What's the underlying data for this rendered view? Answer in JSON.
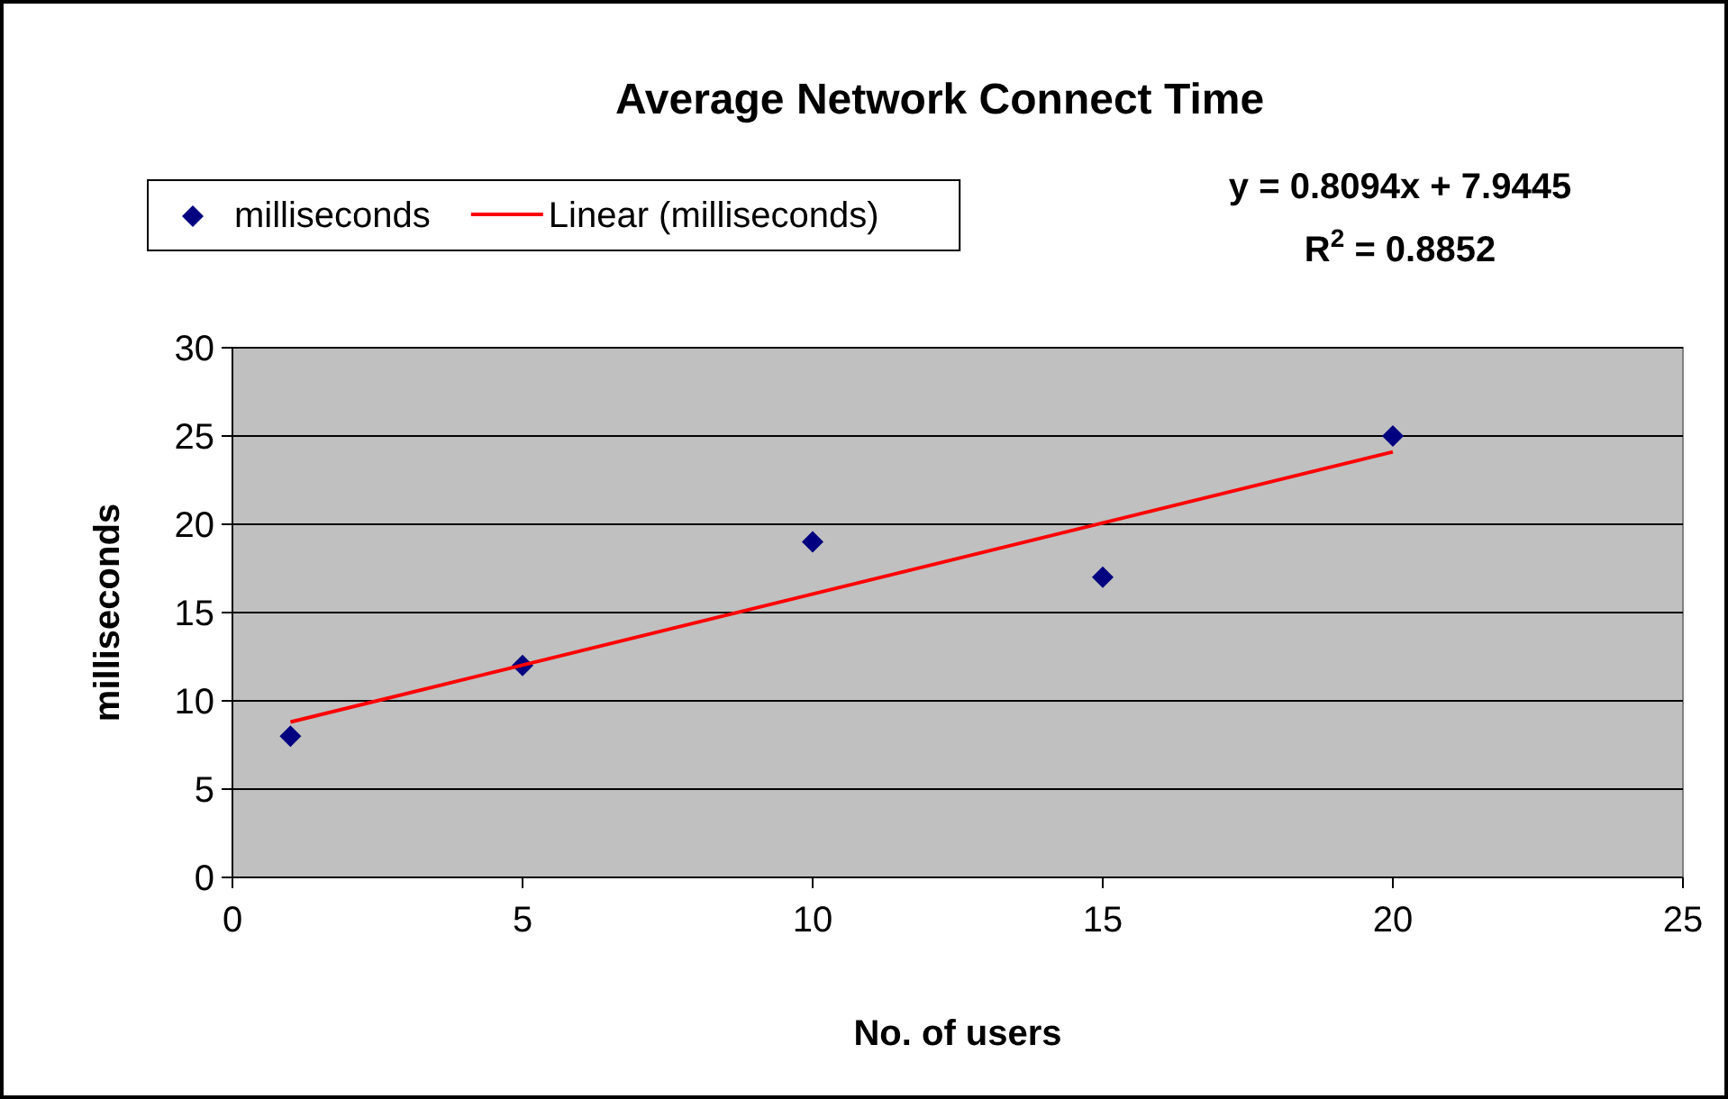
{
  "chart_data": {
    "type": "scatter",
    "title": "Average Network Connect Time",
    "xlabel": "No. of users",
    "ylabel": "milliseconds",
    "annotations": [
      "y = 0.8094x + 7.9445",
      "R$^{2}$ = 0.8852"
    ],
    "xlim": [
      0,
      25
    ],
    "ylim": [
      0,
      30
    ],
    "xticks": [
      0,
      5,
      10,
      15,
      20,
      25
    ],
    "yticks": [
      0,
      5,
      10,
      15,
      20,
      25,
      30
    ],
    "grid": "y",
    "legend": "top left",
    "series": [
      {
        "type": "scatter",
        "name": "milliseconds",
        "color": "#000080",
        "marker": "diamond",
        "x": [
          1,
          5,
          10,
          15,
          20
        ],
        "values": [
          8,
          12,
          19,
          17,
          25
        ]
      },
      {
        "type": "line",
        "name": "Linear (milliseconds)",
        "color": "#ff0000",
        "marker": "none",
        "x": [
          1,
          20
        ],
        "values": [
          8.8,
          24.1
        ]
      }
    ]
  }
}
